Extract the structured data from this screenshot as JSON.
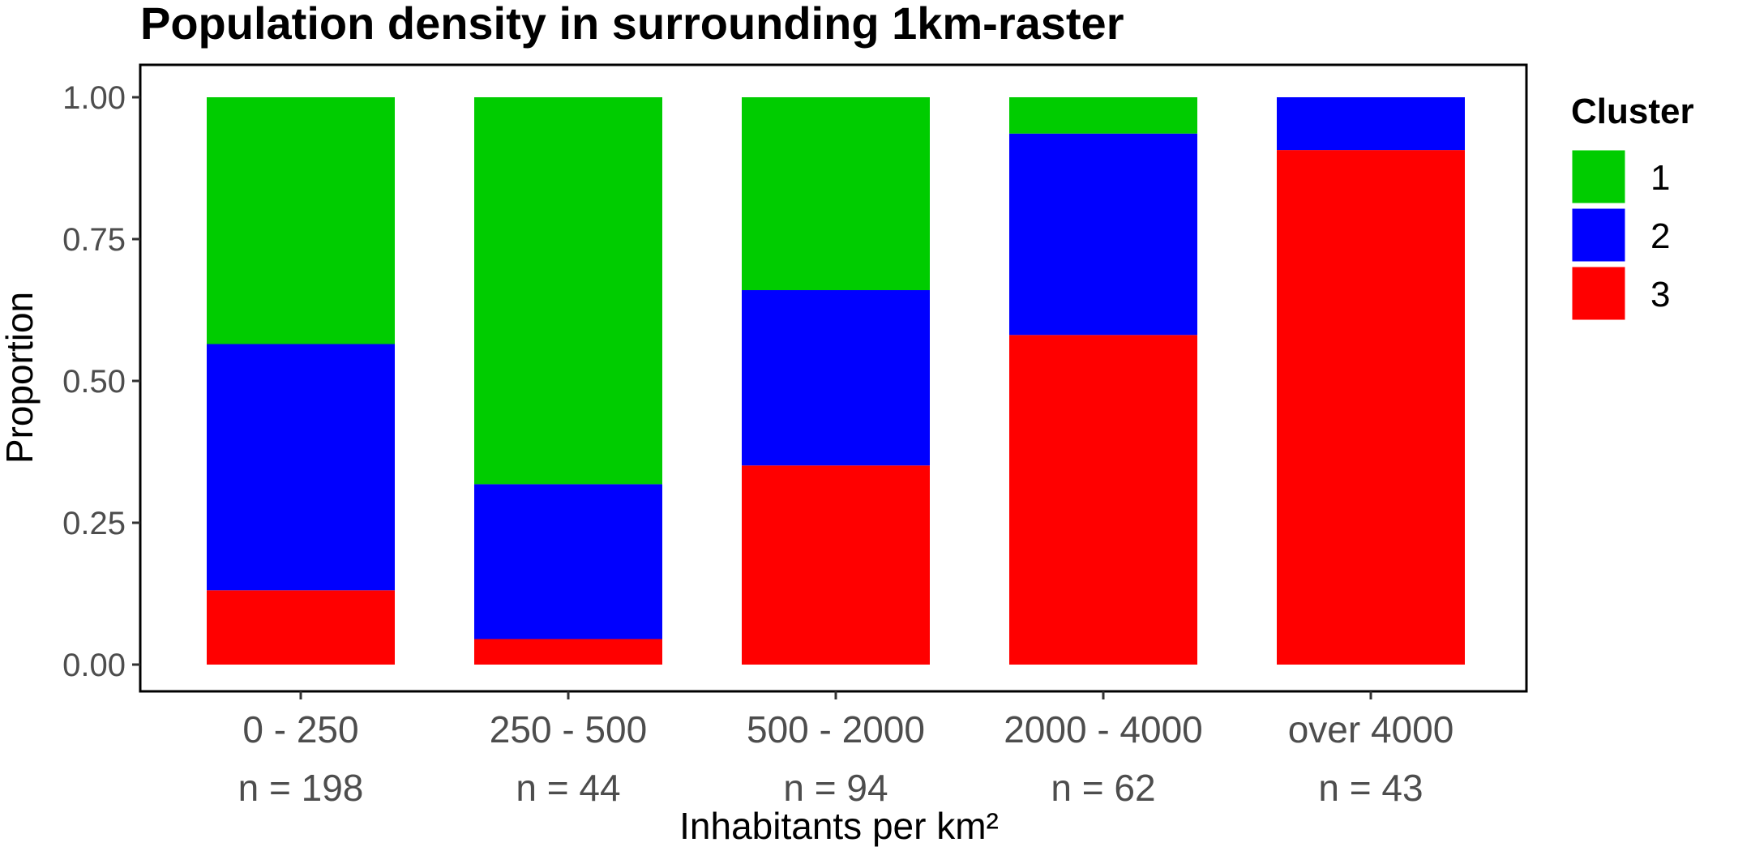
{
  "chart_data": {
    "type": "bar",
    "stacked": true,
    "title": "Population density in surrounding 1km-raster",
    "xlabel": "Inhabitants per km²",
    "ylabel": "Proportion",
    "ylim": [
      0,
      1
    ],
    "yticks": [
      "0.00",
      "0.25",
      "0.50",
      "0.75",
      "1.00"
    ],
    "categories": [
      "0 - 250",
      "250 - 500",
      "500 - 2000",
      "2000 - 4000",
      "over 4000"
    ],
    "category_counts": [
      "n = 198",
      "n = 44",
      "n = 94",
      "n = 62",
      "n = 43"
    ],
    "series": [
      {
        "name": "3",
        "color": "#ff0000",
        "values": [
          0.131,
          0.045,
          0.351,
          0.581,
          0.907
        ]
      },
      {
        "name": "2",
        "color": "#0000ff",
        "values": [
          0.434,
          0.273,
          0.309,
          0.355,
          0.093
        ]
      },
      {
        "name": "1",
        "color": "#00cc00",
        "values": [
          0.435,
          0.682,
          0.34,
          0.064,
          0.0
        ]
      }
    ],
    "legend": {
      "title": "Cluster",
      "position": "right",
      "items": [
        {
          "label": "1",
          "color": "#00cc00"
        },
        {
          "label": "2",
          "color": "#0000ff"
        },
        {
          "label": "3",
          "color": "#ff0000"
        }
      ]
    },
    "grid": false
  }
}
